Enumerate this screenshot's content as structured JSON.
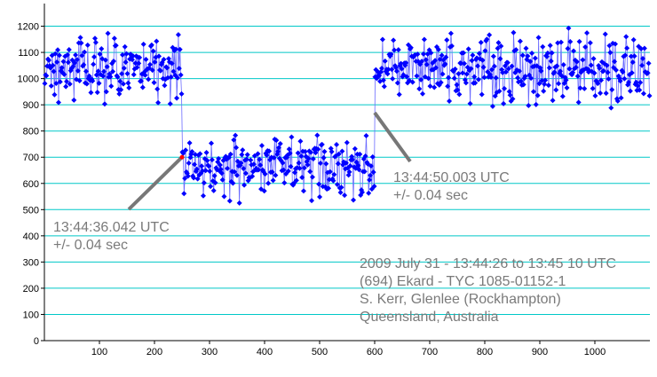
{
  "chart_data": {
    "type": "scatter",
    "title": "",
    "xlabel": "",
    "ylabel": "",
    "xlim": [
      0,
      1100
    ],
    "ylim": [
      0,
      1300
    ],
    "x_ticks": [
      100,
      200,
      300,
      400,
      500,
      600,
      700,
      800,
      900,
      1000
    ],
    "y_ticks": [
      0,
      100,
      200,
      300,
      400,
      500,
      600,
      700,
      800,
      900,
      1000,
      1100,
      1200
    ],
    "grid": true,
    "grid_color": "#00c8c8",
    "series_color": "#0000ff",
    "line_color": "#6a6aff",
    "segments": [
      {
        "x_start": 0,
        "x_end": 250,
        "level": 1040,
        "spread": 85,
        "points": 170
      },
      {
        "x_start": 250,
        "x_end": 600,
        "level": 660,
        "spread": 80,
        "points": 240
      },
      {
        "x_start": 600,
        "x_end": 1100,
        "level": 1040,
        "spread": 90,
        "points": 330
      }
    ],
    "annotations": [
      {
        "text": "13:44:36.042 UTC",
        "pointer": {
          "x": 250,
          "y": 700
        }
      },
      {
        "text": "+/- 0.04 sec"
      },
      {
        "text": "13:44:50.003 UTC",
        "pointer": {
          "x": 600,
          "y": 870
        }
      },
      {
        "text": "+/- 0.04 sec"
      },
      {
        "text": "2009 July 31 - 13:44:26 to 13:45 10 UTC"
      },
      {
        "text": "(694) Ekard - TYC 1085-01152-1"
      },
      {
        "text": "S. Kerr, Glenlee (Rockhampton)"
      },
      {
        "text": "Queensland, Australia"
      }
    ]
  }
}
